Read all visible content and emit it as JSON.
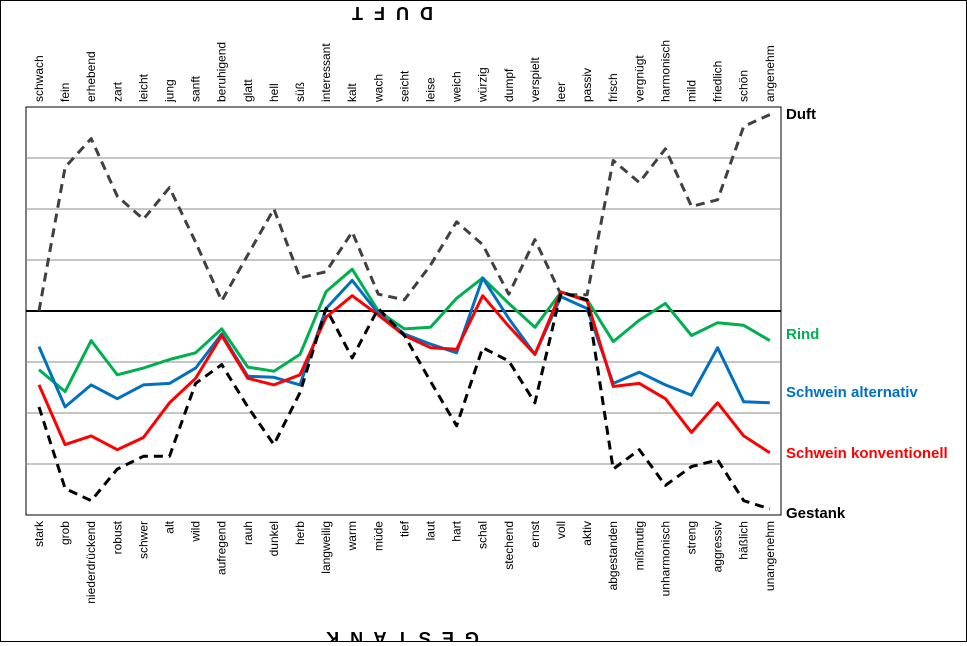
{
  "chart_data": {
    "type": "line",
    "title_top": "D U F T",
    "title_bottom": "G E S T A N K",
    "top_labels": [
      "schwach",
      "fein",
      "erhebend",
      "zart",
      "leicht",
      "jung",
      "sanft",
      "beruhigend",
      "glatt",
      "hell",
      "süß",
      "interessant",
      "kalt",
      "wach",
      "seicht",
      "leise",
      "weich",
      "würzig",
      "dumpf",
      "verspielt",
      "leer",
      "passiv",
      "frisch",
      "vergnügt",
      "harmonisch",
      "mild",
      "friedlich",
      "schön",
      "angenehm"
    ],
    "bottom_labels": [
      "stark",
      "grob",
      "niederdrückend",
      "robust",
      "schwer",
      "alt",
      "wild",
      "aufregend",
      "rauh",
      "dunkel",
      "herb",
      "langweilig",
      "warm",
      "müde",
      "tief",
      "laut",
      "hart",
      "schal",
      "stechend",
      "ernst",
      "voll",
      "aktiv",
      "abgestanden",
      "mißmutig",
      "unharmonisch",
      "streng",
      "aggressiv",
      "häßlich",
      "unangenehm"
    ],
    "ylim": [
      -4,
      4
    ],
    "grid": true,
    "series": [
      {
        "name": "Duft",
        "color": "#404040",
        "dashed": true,
        "values": [
          0.0,
          2.82,
          3.38,
          2.25,
          1.8,
          2.42,
          1.35,
          0.2,
          1.1,
          2.0,
          0.65,
          0.77,
          1.55,
          0.33,
          0.22,
          0.9,
          1.75,
          1.3,
          0.33,
          1.4,
          0.32,
          0.32,
          2.95,
          2.52,
          3.18,
          2.05,
          2.18,
          3.62,
          3.85
        ]
      },
      {
        "name": "Rind",
        "color": "#00b050",
        "dashed": false,
        "values": [
          -1.15,
          -1.58,
          -0.58,
          -1.25,
          -1.12,
          -0.95,
          -0.82,
          -0.35,
          -1.1,
          -1.18,
          -0.85,
          0.38,
          0.82,
          0.0,
          -0.35,
          -0.32,
          0.25,
          0.65,
          0.15,
          -0.32,
          0.37,
          0.22,
          -0.6,
          -0.18,
          0.15,
          -0.48,
          -0.23,
          -0.28,
          -0.58
        ]
      },
      {
        "name": "Schwein alternativ",
        "color": "#0070c0",
        "dashed": false,
        "values": [
          -0.7,
          -1.88,
          -1.45,
          -1.72,
          -1.45,
          -1.42,
          -1.12,
          -0.45,
          -1.28,
          -1.3,
          -1.45,
          0.05,
          0.6,
          -0.05,
          -0.45,
          -0.65,
          -0.82,
          0.65,
          -0.15,
          -0.85,
          0.28,
          0.05,
          -1.42,
          -1.2,
          -1.45,
          -1.65,
          -0.72,
          -1.78,
          -1.8
        ]
      },
      {
        "name": "Schwein konventionell",
        "color": "#ff0000",
        "dashed": false,
        "values": [
          -1.45,
          -2.62,
          -2.45,
          -2.72,
          -2.48,
          -1.8,
          -1.32,
          -0.48,
          -1.32,
          -1.45,
          -1.25,
          -0.12,
          0.3,
          -0.08,
          -0.48,
          -0.72,
          -0.75,
          0.3,
          -0.3,
          -0.85,
          0.37,
          0.2,
          -1.48,
          -1.42,
          -1.72,
          -2.38,
          -1.8,
          -2.45,
          -2.78
        ]
      },
      {
        "name": "Gestank",
        "color": "#000000",
        "dashed": true,
        "values": [
          -1.88,
          -3.48,
          -3.72,
          -3.1,
          -2.85,
          -2.85,
          -1.42,
          -1.05,
          -1.88,
          -2.62,
          -1.6,
          0.05,
          -0.92,
          0.05,
          -0.48,
          -1.38,
          -2.25,
          -0.72,
          -0.98,
          -1.8,
          0.37,
          0.22,
          -3.1,
          -2.72,
          -3.42,
          -3.05,
          -2.92,
          -3.72,
          -3.88
        ]
      }
    ]
  }
}
